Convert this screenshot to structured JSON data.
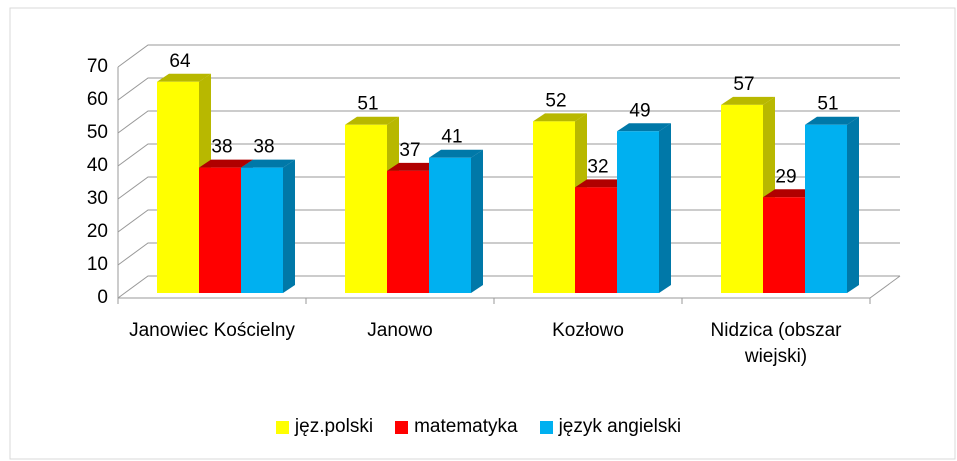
{
  "chart_data": {
    "type": "bar3d",
    "categories": [
      "Janowiec Kościelny",
      "Janowo",
      "Kozłowo",
      "Nidzica (obszar wiejski)"
    ],
    "series": [
      {
        "name": "jęz.polski",
        "color": "#ffff00",
        "side": "#b8b800",
        "values": [
          64,
          51,
          52,
          57
        ]
      },
      {
        "name": "matematyka",
        "color": "#ff0000",
        "side": "#b00000",
        "values": [
          38,
          37,
          32,
          29
        ]
      },
      {
        "name": "język angielski",
        "color": "#00b0f0",
        "side": "#0078a8",
        "values": [
          38,
          41,
          49,
          51
        ]
      }
    ],
    "ylim": [
      0,
      70
    ],
    "yticks": [
      0,
      10,
      20,
      30,
      40,
      50,
      60,
      70
    ],
    "grid": true,
    "data_labels": true,
    "legend": "bottom"
  }
}
